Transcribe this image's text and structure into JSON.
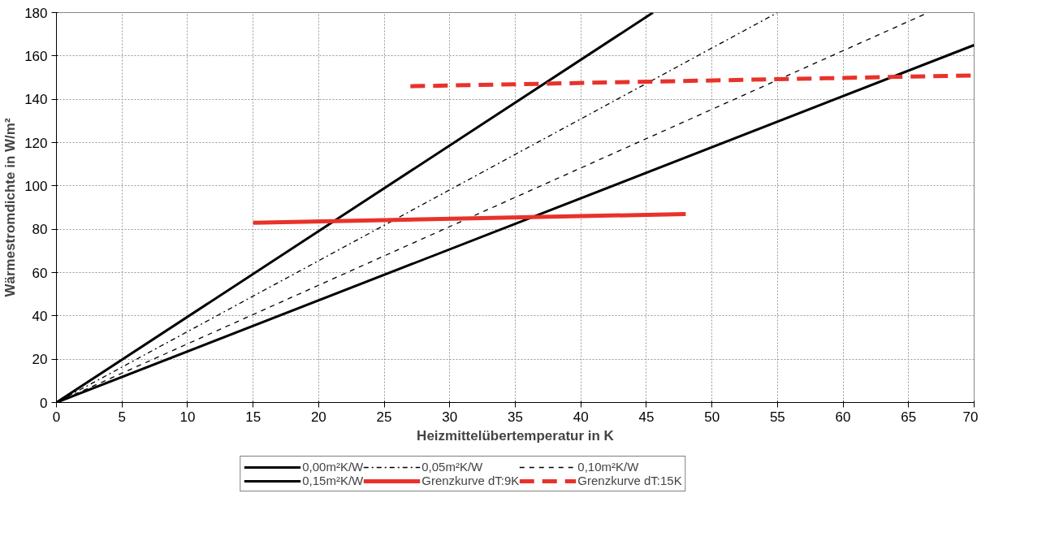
{
  "chart_data": {
    "type": "line",
    "xlabel": "Heizmittelübertemperatur in K",
    "ylabel": "Wärmestromdichte in W/m²",
    "xlim": [
      0,
      70
    ],
    "ylim": [
      0,
      180
    ],
    "xticks": [
      0,
      5,
      10,
      15,
      20,
      25,
      30,
      35,
      40,
      45,
      50,
      55,
      60,
      65,
      70
    ],
    "yticks": [
      0,
      20,
      40,
      60,
      80,
      100,
      120,
      140,
      160,
      180
    ],
    "grid": true,
    "legend": "bottom",
    "series": [
      {
        "name": "0,00m²K/W",
        "color": "#000000",
        "line_style": "solid",
        "x": [
          0,
          45.5
        ],
        "values": [
          0,
          180
        ]
      },
      {
        "name": "0,05m²K/W",
        "color": "#000000",
        "line_style": "dashdot",
        "x": [
          0,
          55
        ],
        "values": [
          0,
          180
        ]
      },
      {
        "name": "0,10m²K/W",
        "color": "#000000",
        "line_style": "dashed",
        "x": [
          0,
          66.5
        ],
        "values": [
          0,
          180
        ]
      },
      {
        "name": "0,15m²K/W",
        "color": "#000000",
        "line_style": "solid",
        "x": [
          0,
          70
        ],
        "values": [
          0,
          165
        ]
      },
      {
        "name": "Grenzkurve dT:9K",
        "color": "#e8322a",
        "line_style": "solid",
        "x": [
          15,
          48
        ],
        "values": [
          83,
          87
        ]
      },
      {
        "name": "Grenzkurve dT:15K",
        "color": "#e8322a",
        "line_style": "dashed",
        "x": [
          27,
          70
        ],
        "values": [
          146,
          151
        ]
      }
    ]
  }
}
